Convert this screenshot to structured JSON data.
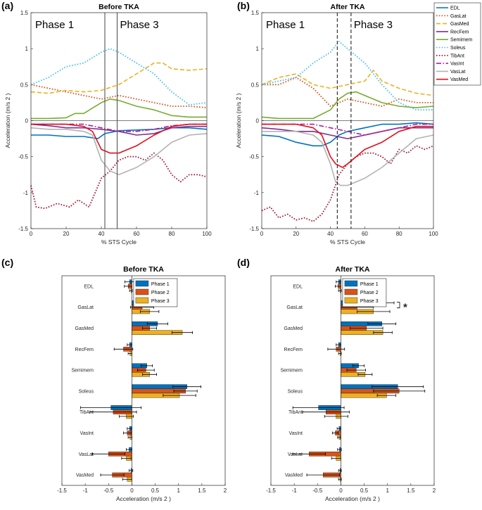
{
  "panel_letters": [
    "(a)",
    "(b)",
    "(c)",
    "(d)"
  ],
  "chart_data": [
    {
      "id": "a",
      "type": "line",
      "title": "Before TKA",
      "xlabel": "% STS Cycle",
      "ylabel": "Acceleration (m/s 2 )",
      "xlim": [
        0,
        100
      ],
      "ylim": [
        -1.5,
        1.5
      ],
      "xticks": [
        0,
        20,
        40,
        60,
        80,
        100
      ],
      "yticks": [
        1.5,
        1,
        0.5,
        0,
        -0.5,
        -1,
        -1.5
      ],
      "ytick_labels": [
        "1.5",
        "1",
        "0.5",
        "0",
        "-0.5",
        "-1",
        "-1.5"
      ],
      "phase_lines": [
        {
          "x": 42,
          "style": "solid"
        },
        {
          "x": 49,
          "style": "solid"
        }
      ],
      "phase_labels": [
        "Phase 1",
        "Phase 3"
      ],
      "series": [
        {
          "name": "EDL",
          "color": "#0072BD",
          "dash": "solid",
          "x": [
            0,
            10,
            20,
            30,
            38,
            42,
            50,
            60,
            70,
            80,
            90,
            100
          ],
          "y": [
            -0.2,
            -0.2,
            -0.22,
            -0.22,
            -0.25,
            -0.18,
            -0.14,
            -0.13,
            -0.12,
            -0.1,
            -0.1,
            -0.12
          ]
        },
        {
          "name": "GasLat",
          "color": "#D95319",
          "dash": "dot",
          "x": [
            0,
            10,
            20,
            30,
            40,
            50,
            60,
            70,
            80,
            90,
            100
          ],
          "y": [
            0.5,
            0.45,
            0.4,
            0.35,
            0.3,
            0.35,
            0.3,
            0.25,
            0.2,
            0.2,
            0.18
          ]
        },
        {
          "name": "GasMed",
          "color": "#EDB120",
          "dash": "dash",
          "x": [
            0,
            10,
            20,
            30,
            40,
            50,
            60,
            70,
            75,
            80,
            90,
            100
          ],
          "y": [
            0.4,
            0.38,
            0.42,
            0.4,
            0.42,
            0.5,
            0.65,
            0.8,
            0.8,
            0.72,
            0.7,
            0.72
          ]
        },
        {
          "name": "RecFem",
          "color": "#7E2F8E",
          "dash": "solid",
          "x": [
            0,
            10,
            20,
            30,
            40,
            50,
            60,
            70,
            80,
            90,
            100
          ],
          "y": [
            -0.05,
            -0.07,
            -0.1,
            -0.1,
            -0.12,
            -0.15,
            -0.2,
            -0.18,
            -0.1,
            -0.08,
            -0.08
          ]
        },
        {
          "name": "Semimem",
          "color": "#77AC30",
          "dash": "solid",
          "x": [
            0,
            10,
            20,
            25,
            30,
            40,
            45,
            50,
            60,
            70,
            80,
            90,
            100
          ],
          "y": [
            0.03,
            0.03,
            0.04,
            0.1,
            0.1,
            0.25,
            0.3,
            0.28,
            0.2,
            0.15,
            0.07,
            0.05,
            0.05
          ]
        },
        {
          "name": "Soleus",
          "color": "#4DBEEE",
          "dash": "dot",
          "x": [
            0,
            10,
            20,
            30,
            40,
            45,
            50,
            60,
            70,
            80,
            90,
            100
          ],
          "y": [
            0.5,
            0.6,
            0.75,
            0.8,
            0.95,
            1.0,
            0.95,
            0.8,
            0.65,
            0.4,
            0.22,
            0.25
          ]
        },
        {
          "name": "TibAnt",
          "color": "#A2142F",
          "dash": "dot",
          "x": [
            0,
            3,
            8,
            15,
            22,
            27,
            33,
            40,
            45,
            50,
            55,
            60,
            65,
            70,
            75,
            80,
            85,
            90,
            95,
            100
          ],
          "y": [
            -0.9,
            -1.2,
            -1.22,
            -1.15,
            -1.2,
            -1.1,
            -1.2,
            -0.8,
            -0.7,
            -0.55,
            -0.5,
            -0.5,
            -0.55,
            -0.45,
            -0.55,
            -0.75,
            -0.85,
            -0.75,
            -0.75,
            -0.78
          ]
        },
        {
          "name": "VasInt",
          "color": "#B01EA0",
          "dash": "dashdot",
          "x": [
            0,
            10,
            20,
            30,
            40,
            50,
            60,
            70,
            80,
            90,
            100
          ],
          "y": [
            -0.05,
            -0.05,
            -0.05,
            -0.05,
            -0.1,
            -0.15,
            -0.15,
            -0.12,
            -0.07,
            -0.05,
            -0.05
          ]
        },
        {
          "name": "VasLat",
          "color": "#B3B3B3",
          "dash": "solid",
          "x": [
            0,
            10,
            20,
            30,
            35,
            40,
            45,
            50,
            60,
            70,
            80,
            90,
            100
          ],
          "y": [
            -0.1,
            -0.12,
            -0.12,
            -0.15,
            -0.2,
            -0.55,
            -0.7,
            -0.75,
            -0.65,
            -0.5,
            -0.3,
            -0.2,
            -0.18
          ]
        },
        {
          "name": "VasMed",
          "color": "#E0101A",
          "dash": "solid",
          "x": [
            0,
            10,
            20,
            30,
            35,
            40,
            45,
            50,
            60,
            70,
            80,
            90,
            100
          ],
          "y": [
            -0.05,
            -0.05,
            -0.05,
            -0.08,
            -0.15,
            -0.4,
            -0.45,
            -0.45,
            -0.35,
            -0.2,
            -0.08,
            -0.05,
            -0.05
          ]
        }
      ]
    },
    {
      "id": "b",
      "type": "line",
      "title": "After TKA",
      "xlabel": "% STS Cycle",
      "ylabel": "Acceleration (m/s 2 )",
      "xlim": [
        0,
        100
      ],
      "ylim": [
        -1.5,
        1.5
      ],
      "xticks": [
        0,
        20,
        40,
        60,
        80,
        100
      ],
      "yticks": [
        1.5,
        1,
        0.5,
        0,
        -0.5,
        -1,
        -1.5
      ],
      "ytick_labels": [
        "1.5",
        "1",
        "0.5",
        "0",
        "-0.5",
        "-1",
        "-1.5"
      ],
      "phase_lines": [
        {
          "x": 44,
          "style": "dashed"
        },
        {
          "x": 52,
          "style": "dashed"
        }
      ],
      "phase_labels": [
        "Phase 1",
        "Phase 3"
      ],
      "series": [
        {
          "name": "EDL",
          "color": "#0072BD",
          "dash": "solid",
          "x": [
            0,
            10,
            20,
            30,
            35,
            40,
            45,
            50,
            60,
            70,
            80,
            90,
            100
          ],
          "y": [
            -0.2,
            -0.22,
            -0.3,
            -0.35,
            -0.35,
            -0.3,
            -0.2,
            -0.15,
            -0.1,
            -0.05,
            -0.05,
            -0.03,
            -0.05
          ]
        },
        {
          "name": "GasLat",
          "color": "#D95319",
          "dash": "dot",
          "x": [
            0,
            10,
            20,
            30,
            40,
            45,
            50,
            60,
            70,
            80,
            90,
            100
          ],
          "y": [
            0.5,
            0.5,
            0.6,
            0.45,
            0.2,
            0.25,
            0.3,
            0.25,
            0.2,
            0.3,
            0.25,
            0.25
          ]
        },
        {
          "name": "GasMed",
          "color": "#EDB120",
          "dash": "dash",
          "x": [
            0,
            10,
            20,
            30,
            40,
            50,
            60,
            65,
            70,
            80,
            90,
            100
          ],
          "y": [
            0.5,
            0.6,
            0.65,
            0.5,
            0.45,
            0.5,
            0.55,
            0.7,
            0.55,
            0.45,
            0.38,
            0.35
          ]
        },
        {
          "name": "RecFem",
          "color": "#7E2F8E",
          "dash": "solid",
          "x": [
            0,
            10,
            20,
            30,
            40,
            50,
            60,
            70,
            80,
            90,
            100
          ],
          "y": [
            -0.1,
            -0.12,
            -0.15,
            -0.15,
            -0.2,
            -0.25,
            -0.2,
            -0.15,
            -0.1,
            -0.1,
            -0.1
          ]
        },
        {
          "name": "Semimem",
          "color": "#77AC30",
          "dash": "solid",
          "x": [
            0,
            10,
            20,
            30,
            40,
            45,
            50,
            55,
            60,
            70,
            80,
            90,
            100
          ],
          "y": [
            0.05,
            0.03,
            0.03,
            0.03,
            0.15,
            0.3,
            0.38,
            0.4,
            0.35,
            0.25,
            0.2,
            0.18,
            0.2
          ]
        },
        {
          "name": "Soleus",
          "color": "#4DBEEE",
          "dash": "dot",
          "x": [
            0,
            10,
            20,
            30,
            40,
            45,
            50,
            60,
            70,
            80,
            90,
            100
          ],
          "y": [
            0.5,
            0.55,
            0.6,
            0.8,
            0.95,
            1.1,
            1.0,
            0.8,
            0.5,
            0.25,
            0.15,
            0.15
          ]
        },
        {
          "name": "TibAnt",
          "color": "#A2142F",
          "dash": "dot",
          "x": [
            0,
            5,
            10,
            15,
            20,
            25,
            30,
            35,
            40,
            45,
            50,
            55,
            60,
            65,
            70,
            75,
            80,
            85,
            90,
            95,
            100
          ],
          "y": [
            -1.25,
            -1.2,
            -1.35,
            -1.3,
            -1.38,
            -1.35,
            -1.4,
            -1.3,
            -1.1,
            -0.75,
            -0.6,
            -0.5,
            -0.45,
            -0.45,
            -0.5,
            -0.6,
            -0.4,
            -0.45,
            -0.35,
            -0.4,
            -0.35
          ]
        },
        {
          "name": "VasInt",
          "color": "#B01EA0",
          "dash": "dashdot",
          "x": [
            0,
            10,
            20,
            30,
            40,
            50,
            60,
            70,
            80,
            90,
            100
          ],
          "y": [
            -0.05,
            -0.05,
            -0.05,
            -0.05,
            -0.1,
            -0.15,
            -0.2,
            -0.15,
            -0.1,
            -0.05,
            -0.05
          ]
        },
        {
          "name": "VasLat",
          "color": "#B3B3B3",
          "dash": "solid",
          "x": [
            0,
            10,
            20,
            30,
            35,
            40,
            43,
            46,
            50,
            55,
            60,
            70,
            80,
            90,
            100
          ],
          "y": [
            -0.15,
            -0.15,
            -0.15,
            -0.2,
            -0.3,
            -0.6,
            -0.85,
            -0.9,
            -0.9,
            -0.85,
            -0.8,
            -0.65,
            -0.45,
            -0.25,
            -0.2
          ]
        },
        {
          "name": "VasMed",
          "color": "#E0101A",
          "dash": "solid",
          "x": [
            0,
            10,
            20,
            30,
            35,
            40,
            43,
            47,
            50,
            55,
            60,
            70,
            80,
            90,
            100
          ],
          "y": [
            -0.05,
            -0.05,
            -0.05,
            -0.1,
            -0.2,
            -0.5,
            -0.6,
            -0.65,
            -0.6,
            -0.5,
            -0.4,
            -0.3,
            -0.15,
            -0.08,
            -0.08
          ]
        }
      ]
    },
    {
      "id": "c",
      "type": "bar",
      "orientation": "horizontal",
      "title": "Before TKA",
      "xlabel": "Acceleration (m/s 2 )",
      "xlim": [
        -1.5,
        2
      ],
      "xticks": [
        -1.5,
        -1,
        -0.5,
        0,
        0.5,
        1,
        1.5,
        2
      ],
      "xtick_labels": [
        "-1.5",
        "-1",
        "-0.5",
        "0",
        "0.5",
        "1",
        "1.5",
        "2"
      ],
      "categories": [
        "EDL",
        "GasLat",
        "GasMed",
        "RecFem",
        "Semimem",
        "Soleus",
        "TibAnt",
        "VasInt",
        "VasLat",
        "VasMed"
      ],
      "series": [
        {
          "name": "Phase 1",
          "color": "#0072BD",
          "values": [
            -0.05,
            0.65,
            0.55,
            -0.05,
            0.32,
            1.18,
            -0.45,
            -0.05,
            -0.06,
            -0.02
          ],
          "errors": [
            0.1,
            0.3,
            0.22,
            0.05,
            0.12,
            0.3,
            0.65,
            0.05,
            0.06,
            0.04
          ]
        },
        {
          "name": "Phase 2",
          "color": "#D95319",
          "values": [
            -0.08,
            0.22,
            0.38,
            -0.18,
            0.3,
            1.15,
            -0.4,
            -0.1,
            -0.5,
            -0.42
          ],
          "errors": [
            0.08,
            0.25,
            0.15,
            0.2,
            0.18,
            0.25,
            0.5,
            0.08,
            0.35,
            0.25
          ]
        },
        {
          "name": "Phase 3",
          "color": "#EDB120",
          "values": [
            -0.02,
            0.38,
            1.08,
            -0.04,
            0.38,
            1.02,
            -0.12,
            -0.04,
            -0.12,
            -0.1
          ],
          "errors": [
            0.03,
            0.2,
            0.22,
            0.04,
            0.15,
            0.35,
            0.15,
            0.04,
            0.1,
            0.1
          ]
        }
      ]
    },
    {
      "id": "d",
      "type": "bar",
      "orientation": "horizontal",
      "title": "After TKA",
      "xlabel": "Acceleration (m/s 2 )",
      "xlim": [
        -1.5,
        2
      ],
      "xticks": [
        -1.5,
        -1,
        -0.5,
        0,
        0.5,
        1,
        1.5,
        2
      ],
      "xtick_labels": [
        "-1.5",
        "-1",
        "-0.5",
        "0",
        "0.5",
        "1",
        "1.5",
        "2"
      ],
      "categories": [
        "EDL",
        "GasLat",
        "GasMed",
        "RecFem",
        "Semimem",
        "Soleus",
        "TibAnt",
        "VasInt",
        "VasLat",
        "VasMed"
      ],
      "significance": {
        "category": "GasLat",
        "symbol": "*"
      },
      "series": [
        {
          "name": "Phase 1",
          "color": "#0072BD",
          "values": [
            -0.05,
            0.92,
            0.88,
            -0.05,
            0.38,
            1.22,
            -0.48,
            -0.04,
            -0.03,
            -0.02
          ],
          "errors": [
            0.05,
            0.22,
            0.3,
            0.05,
            0.12,
            0.55,
            0.55,
            0.04,
            0.04,
            0.03
          ]
        },
        {
          "name": "Phase 2",
          "color": "#D95319",
          "values": [
            -0.06,
            0.35,
            0.55,
            -0.1,
            0.33,
            1.25,
            -0.32,
            -0.12,
            -0.68,
            -0.38
          ],
          "errors": [
            0.06,
            0.35,
            0.35,
            0.18,
            0.2,
            0.55,
            0.5,
            0.06,
            0.35,
            0.35
          ]
        },
        {
          "name": "Phase 3",
          "color": "#EDB120",
          "values": [
            -0.02,
            0.7,
            0.9,
            -0.02,
            0.52,
            0.98,
            -0.1,
            -0.04,
            -0.1,
            -0.02
          ],
          "errors": [
            0.03,
            0.35,
            0.2,
            0.03,
            0.15,
            0.2,
            0.25,
            0.03,
            0.1,
            0.03
          ]
        }
      ]
    }
  ]
}
